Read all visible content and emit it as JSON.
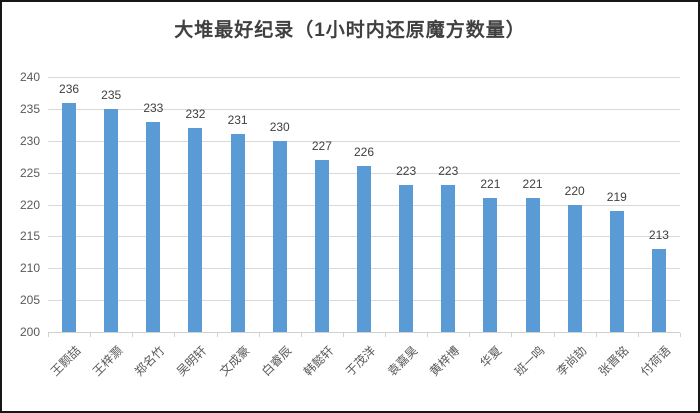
{
  "window": {
    "background": "#ffffff",
    "border_color": "#161616"
  },
  "chart_data": {
    "type": "bar",
    "title": "大堆最好纪录（1小时内还原魔方数量）",
    "categories": [
      "王颢喆",
      "王梓灏",
      "郑名竹",
      "吴明轩",
      "文成豪",
      "白睿辰",
      "韩懿轩",
      "于茂洋",
      "袁嘉昊",
      "黄梓博",
      "华夏",
      "班一鸣",
      "李尚劼",
      "张晋铭",
      "付荷语"
    ],
    "values": [
      236,
      235,
      233,
      232,
      231,
      230,
      227,
      226,
      223,
      223,
      221,
      221,
      220,
      219,
      213
    ],
    "data_labels": [
      236,
      235,
      233,
      232,
      231,
      230,
      227,
      226,
      223,
      223,
      221,
      221,
      220,
      219,
      213
    ],
    "xlabel": "",
    "ylabel": "",
    "ylim": [
      200,
      240
    ],
    "ytick_step": 5,
    "yticks": [
      200,
      205,
      210,
      215,
      220,
      225,
      230,
      235,
      240
    ],
    "grid": true,
    "legend": "none",
    "colors": {
      "bar": "#5b9bd5",
      "gridline": "#d9d9d9",
      "axis_text": "#595959",
      "data_label_text": "#404040",
      "title_text": "#404040"
    }
  }
}
